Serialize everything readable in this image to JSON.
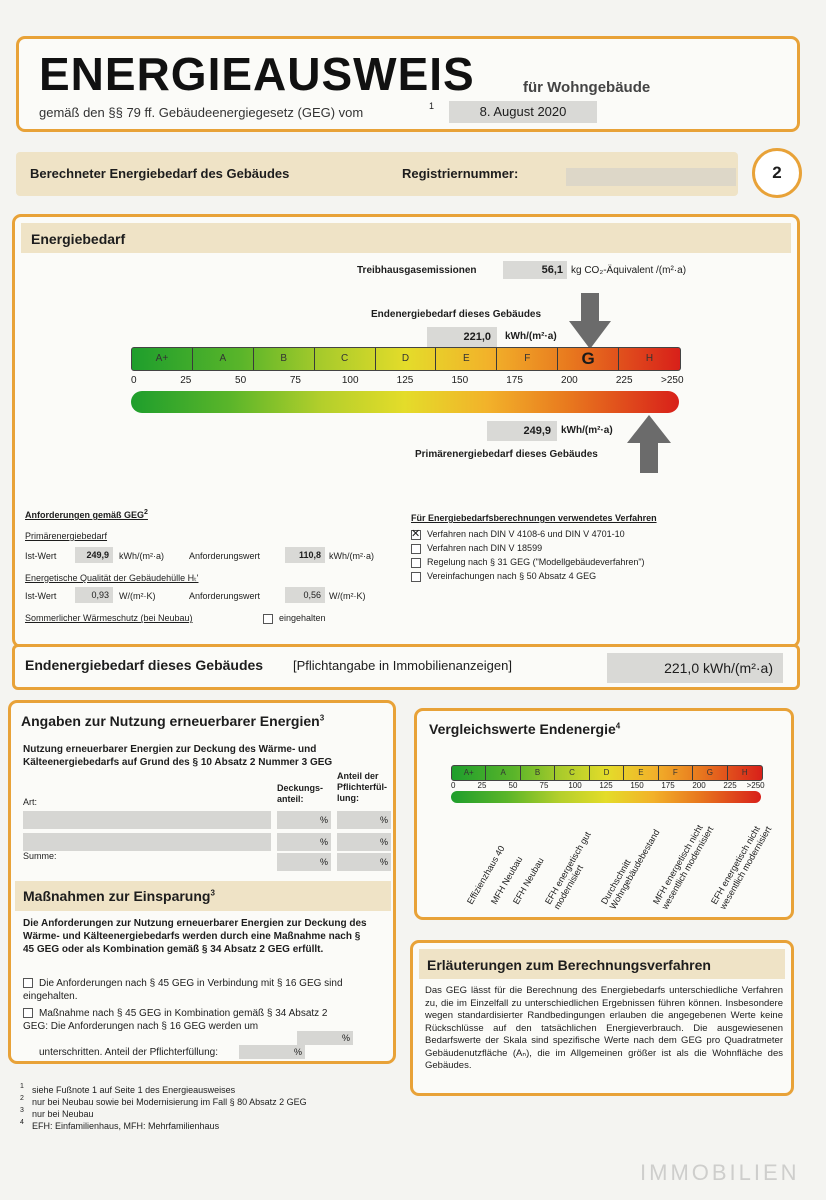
{
  "header": {
    "title": "ENERGIEAUSWEIS",
    "subtitle": "für Wohngebäude",
    "law_line": "gemäß den §§ 79 ff. Gebäudeenergiegesetz (GEG) vom",
    "law_footnote": "1",
    "law_date": "8. August 2020"
  },
  "banner": {
    "left": "Berechneter Energiebedarf des Gebäudes",
    "reg_label": "Registriernummer:",
    "page_number": "2"
  },
  "energiebedarf": {
    "title": "Energiebedarf",
    "emissions_label": "Treibhausgasemissionen",
    "emissions_value": "56,1",
    "emissions_unit": "kg CO₂-Äquivalent /(m²·a)",
    "end_label": "Endenergiebedarf dieses Gebäudes",
    "end_value": "221,0",
    "end_unit": "kWh/(m²·a)",
    "primary_label": "Primärenergiebedarf dieses Gebäudes",
    "primary_value": "249,9",
    "primary_unit": "kWh/(m²·a)",
    "classes": [
      "A+",
      "A",
      "B",
      "C",
      "D",
      "E",
      "F",
      "G",
      "H"
    ],
    "scale": [
      "0",
      "25",
      "50",
      "75",
      "100",
      "125",
      "150",
      "175",
      "200",
      "225",
      ">250"
    ],
    "highlight_class": "G"
  },
  "anforderungen": {
    "title": "Anforderungen gemäß GEG",
    "title_footnote": "2",
    "primary_title": "Primärenergiebedarf",
    "ist_label": "Ist-Wert",
    "ist_value": "249,9",
    "ist_unit": "kWh/(m²·a)",
    "anf_label": "Anforderungswert",
    "anf_value": "110,8",
    "anf_unit": "kWh/(m²·a)",
    "huelle_title": "Energetische Qualität der Gebäudehülle Hₜ'",
    "huelle_ist_label": "Ist-Wert",
    "huelle_ist_value": "0,93",
    "huelle_ist_unit": "W/(m²·K)",
    "huelle_anf_label": "Anforderungswert",
    "huelle_anf_value": "0,56",
    "huelle_anf_unit": "W/(m²·K)",
    "sommer_label": "Sommerlicher Wärmeschutz (bei Neubau)",
    "sommer_check": "eingehalten"
  },
  "verfahren": {
    "title": "Für Energiebedarfsberechnungen verwendetes Verfahren",
    "items": [
      {
        "label": "Verfahren nach DIN V 4108-6 und DIN V 4701-10",
        "checked": true
      },
      {
        "label": "Verfahren nach DIN V 18599",
        "checked": false
      },
      {
        "label": "Regelung nach § 31 GEG (\"Modellgebäudeverfahren\")",
        "checked": false
      },
      {
        "label": "Vereinfachungen nach § 50 Absatz 4 GEG",
        "checked": false
      }
    ]
  },
  "endenergie_bar": {
    "label": "Endenergiebedarf dieses Gebäudes",
    "note": "[Pflichtangabe in Immobilienanzeigen]",
    "value": "221,0 kWh/(m²·a)"
  },
  "erneuerbar": {
    "title": "Angaben zur Nutzung erneuerbarer Energien",
    "title_footnote": "3",
    "desc": "Nutzung erneuerbarer Energien zur Deckung des Wärme- und Kälteenergiebedarfs auf Grund des § 10 Absatz 2 Nummer 3 GEG",
    "col_art": "Art:",
    "col_deckung": "Deckungs-anteil:",
    "col_pflicht": "Anteil der Pflichterfül-lung:",
    "percent": "%",
    "summe": "Summe:"
  },
  "massnahmen": {
    "title": "Maßnahmen zur Einsparung",
    "title_footnote": "3",
    "desc": "Die Anforderungen zur Nutzung erneuerbarer Energien zur Deckung des Wärme- und Kälteenergiebedarfs werden durch eine Maßnahme nach § 45 GEG oder als Kombination gemäß § 34 Absatz 2 GEG erfüllt.",
    "opt1": "Die Anforderungen nach § 45 GEG in Verbindung mit § 16 GEG sind eingehalten.",
    "opt2": "Maßnahme nach § 45 GEG in Kombination gemäß § 34 Absatz 2 GEG: Die Anforderungen nach § 16 GEG werden um",
    "opt2_tail": "unterschritten. Anteil der Pflichterfüllung:",
    "percent": "%"
  },
  "vergleich": {
    "title": "Vergleichswerte Endenergie",
    "title_footnote": "4",
    "classes": [
      "A+",
      "A",
      "B",
      "C",
      "D",
      "E",
      "F",
      "G",
      "H"
    ],
    "scale": [
      "0",
      "25",
      "50",
      "75",
      "100",
      "125",
      "150",
      "175",
      "200",
      "225",
      ">250"
    ],
    "labels": [
      "Effizienzhaus 40",
      "MFH Neubau",
      "EFH Neubau",
      "EFH energetisch gut modernisiert",
      "Durchschnitt Wohngebäudebestand",
      "MFH energetisch nicht wesentlich modernisiert",
      "EFH energetisch nicht wesentlich modernisiert"
    ]
  },
  "erlaeuterungen": {
    "title": "Erläuterungen zum Berechnungsverfahren",
    "text": "Das GEG lässt für die Berechnung des Energiebedarfs unterschiedliche Verfahren zu, die im Einzelfall zu unterschiedlichen Ergebnissen führen können. Insbesondere wegen standardisierter Randbedingungen erlauben die angegebenen Werte keine Rückschlüsse auf den tatsächlichen Energieverbrauch. Die ausgewiesenen Bedarfswerte der Skala sind spezifische Werte nach dem GEG pro Quadratmeter Gebäudenutzfläche (Aₙ), die im Allgemeinen größer ist als die Wohnfläche des Gebäudes."
  },
  "footnotes": [
    {
      "n": "1",
      "text": "siehe Fußnote 1 auf Seite 1 des Energieausweises"
    },
    {
      "n": "2",
      "text": "nur bei Neubau sowie bei Modernisierung im Fall § 80 Absatz 2 GEG"
    },
    {
      "n": "3",
      "text": "nur bei Neubau"
    },
    {
      "n": "4",
      "text": "EFH: Einfamilienhaus, MFH: Mehrfamilienhaus"
    }
  ],
  "watermark": "IMMOBILIEN",
  "colors": {
    "border": "#e8a238",
    "tan": "#efe3c6",
    "green": "#1e9e2c",
    "red": "#d8201a"
  }
}
